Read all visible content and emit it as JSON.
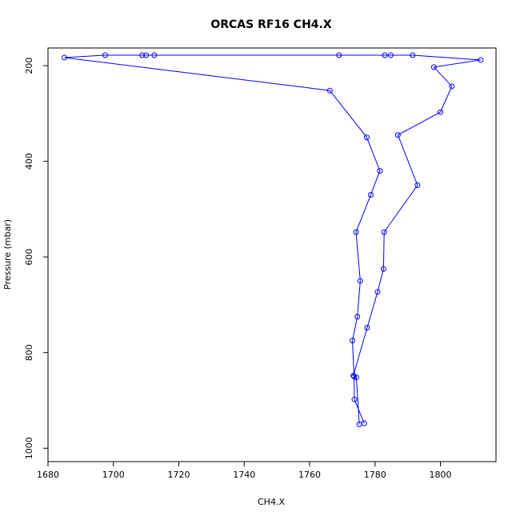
{
  "chart_data": {
    "type": "line",
    "title": "ORCAS RF16 CH4.X",
    "xlabel": "CH4.X",
    "ylabel": "Pressure (mbar)",
    "xlim": [
      1680,
      1817
    ],
    "ylim": [
      1028,
      163
    ],
    "y_reversed": true,
    "xticks": [
      1680,
      1700,
      1720,
      1740,
      1760,
      1780,
      1800
    ],
    "yticks": [
      200,
      400,
      600,
      800,
      1000
    ],
    "grid": false,
    "legend": "none",
    "marker": "open-circle",
    "color": "#0000ff",
    "series": [
      {
        "x": [
          1776.7,
          1773.7,
          1773.6,
          1773.1,
          1774.6,
          1775.5,
          1774.2,
          1778.7,
          1781.5,
          1777.5,
          1766.2,
          1685.0,
          1697.5,
          1708.8,
          1710.0,
          1712.5,
          1769.0,
          1783.0,
          1784.8,
          1791.5,
          1812.3,
          1798.0,
          1803.5,
          1800.0,
          1787.0,
          1793.0,
          1782.8,
          1782.6,
          1780.8,
          1777.6,
          1773.4,
          1774.3,
          1775.2
        ],
        "y": [
          948,
          898,
          850,
          775,
          725,
          650,
          548,
          470,
          420,
          350,
          252,
          183,
          178,
          178,
          178,
          178,
          178,
          178,
          178,
          178,
          188,
          203,
          243,
          297,
          345,
          450,
          548,
          625,
          673,
          748,
          848,
          852,
          950
        ]
      }
    ]
  }
}
